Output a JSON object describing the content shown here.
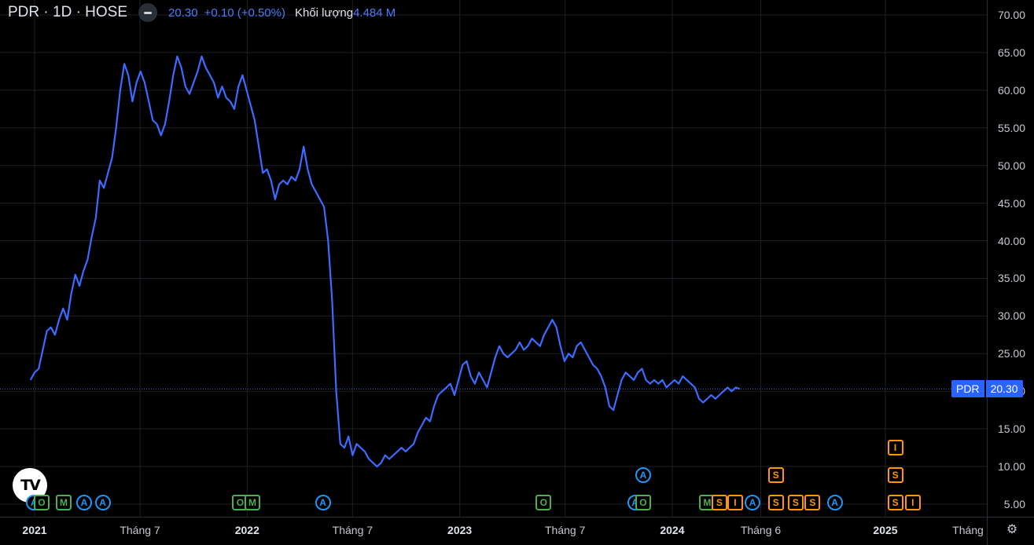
{
  "header": {
    "symbol": "PDR · 1D · HOSE",
    "price": "20.30",
    "change": "+0.10 (+0.50%)",
    "volume_label": "Khối lượng",
    "volume_value": "4.484 M"
  },
  "logo_text": "TV",
  "price_tag": {
    "symbol": "PDR",
    "value": "20.30"
  },
  "x_axis_labels": [
    {
      "text": "2021",
      "year": true,
      "date": "2021-01-01"
    },
    {
      "text": "Tháng 7",
      "year": false,
      "date": "2021-07-01"
    },
    {
      "text": "2022",
      "year": true,
      "date": "2022-01-01"
    },
    {
      "text": "Tháng 7",
      "year": false,
      "date": "2022-07-01"
    },
    {
      "text": "2023",
      "year": true,
      "date": "2023-01-01"
    },
    {
      "text": "Tháng 7",
      "year": false,
      "date": "2023-07-01"
    },
    {
      "text": "2024",
      "year": true,
      "date": "2024-01-01"
    },
    {
      "text": "Tháng 6",
      "year": false,
      "date": "2024-06-01"
    },
    {
      "text": "2025",
      "year": true,
      "date": "2025-01-01"
    }
  ],
  "x_axis_unit_label": "Tháng",
  "events": [
    {
      "type": "A",
      "date": "2020-12-31",
      "row": 0
    },
    {
      "type": "O",
      "date": "2021-01-13",
      "row": 0
    },
    {
      "type": "M",
      "date": "2021-02-20",
      "row": 0
    },
    {
      "type": "A",
      "date": "2021-03-27",
      "row": 0
    },
    {
      "type": "A",
      "date": "2021-04-28",
      "row": 0
    },
    {
      "type": "O",
      "date": "2021-12-20",
      "row": 0
    },
    {
      "type": "M",
      "date": "2022-01-10",
      "row": 0
    },
    {
      "type": "A",
      "date": "2022-05-11",
      "row": 0
    },
    {
      "type": "O",
      "date": "2023-05-25",
      "row": 0
    },
    {
      "type": "A",
      "date": "2023-10-29",
      "row": 0
    },
    {
      "type": "O",
      "date": "2023-11-12",
      "row": 0
    },
    {
      "type": "A",
      "date": "2023-11-12",
      "row": 1
    },
    {
      "type": "M",
      "date": "2024-03-01",
      "row": 0
    },
    {
      "type": "S",
      "date": "2024-03-22",
      "row": 0
    },
    {
      "type": "I",
      "date": "2024-04-18",
      "row": 0
    },
    {
      "type": "A",
      "date": "2024-05-18",
      "row": 0
    },
    {
      "type": "S",
      "date": "2024-06-27",
      "row": 0
    },
    {
      "type": "S",
      "date": "2024-06-27",
      "row": 1
    },
    {
      "type": "S",
      "date": "2024-07-31",
      "row": 0
    },
    {
      "type": "S",
      "date": "2024-08-29",
      "row": 0
    },
    {
      "type": "A",
      "date": "2024-10-06",
      "row": 0
    },
    {
      "type": "S",
      "date": "2025-01-18",
      "row": 0
    },
    {
      "type": "S",
      "date": "2025-01-18",
      "row": 1
    },
    {
      "type": "I",
      "date": "2025-01-18",
      "row": 2
    },
    {
      "type": "I",
      "date": "2025-02-17",
      "row": 0
    }
  ],
  "chart_data": {
    "type": "line",
    "series": [
      {
        "name": "PDR",
        "color": "#3d6bff",
        "points": [
          [
            "2020-12-25",
            21.5
          ],
          [
            "2021-01-01",
            22.5
          ],
          [
            "2021-01-08",
            23.0
          ],
          [
            "2021-01-15",
            25.5
          ],
          [
            "2021-01-22",
            28.0
          ],
          [
            "2021-01-29",
            28.5
          ],
          [
            "2021-02-05",
            27.5
          ],
          [
            "2021-02-12",
            29.5
          ],
          [
            "2021-02-19",
            31.0
          ],
          [
            "2021-02-26",
            29.5
          ],
          [
            "2021-03-05",
            33.0
          ],
          [
            "2021-03-12",
            35.5
          ],
          [
            "2021-03-19",
            34.0
          ],
          [
            "2021-03-26",
            36.0
          ],
          [
            "2021-04-02",
            37.5
          ],
          [
            "2021-04-09",
            40.5
          ],
          [
            "2021-04-16",
            43.0
          ],
          [
            "2021-04-23",
            48.0
          ],
          [
            "2021-04-30",
            47.0
          ],
          [
            "2021-05-07",
            49.0
          ],
          [
            "2021-05-14",
            51.0
          ],
          [
            "2021-05-21",
            55.0
          ],
          [
            "2021-05-28",
            60.0
          ],
          [
            "2021-06-04",
            63.5
          ],
          [
            "2021-06-11",
            62.0
          ],
          [
            "2021-06-18",
            58.5
          ],
          [
            "2021-06-25",
            61.0
          ],
          [
            "2021-07-02",
            62.5
          ],
          [
            "2021-07-09",
            61.0
          ],
          [
            "2021-07-16",
            58.5
          ],
          [
            "2021-07-23",
            56.0
          ],
          [
            "2021-07-30",
            55.5
          ],
          [
            "2021-08-06",
            54.0
          ],
          [
            "2021-08-13",
            55.5
          ],
          [
            "2021-08-20",
            58.5
          ],
          [
            "2021-08-27",
            62.0
          ],
          [
            "2021-09-03",
            64.5
          ],
          [
            "2021-09-10",
            63.0
          ],
          [
            "2021-09-17",
            60.5
          ],
          [
            "2021-09-24",
            59.5
          ],
          [
            "2021-10-01",
            61.0
          ],
          [
            "2021-10-08",
            62.5
          ],
          [
            "2021-10-15",
            64.5
          ],
          [
            "2021-10-22",
            63.0
          ],
          [
            "2021-10-29",
            62.0
          ],
          [
            "2021-11-05",
            61.0
          ],
          [
            "2021-11-12",
            59.0
          ],
          [
            "2021-11-19",
            60.5
          ],
          [
            "2021-11-26",
            59.0
          ],
          [
            "2021-12-03",
            58.5
          ],
          [
            "2021-12-10",
            57.5
          ],
          [
            "2021-12-17",
            60.5
          ],
          [
            "2021-12-24",
            62.0
          ],
          [
            "2021-12-31",
            60.0
          ],
          [
            "2022-01-07",
            58.0
          ],
          [
            "2022-01-14",
            56.0
          ],
          [
            "2022-01-21",
            52.5
          ],
          [
            "2022-01-28",
            49.0
          ],
          [
            "2022-02-04",
            49.5
          ],
          [
            "2022-02-11",
            48.0
          ],
          [
            "2022-02-18",
            45.5
          ],
          [
            "2022-02-25",
            47.5
          ],
          [
            "2022-03-04",
            48.0
          ],
          [
            "2022-03-11",
            47.5
          ],
          [
            "2022-03-18",
            48.5
          ],
          [
            "2022-03-25",
            48.0
          ],
          [
            "2022-04-01",
            49.5
          ],
          [
            "2022-04-08",
            52.5
          ],
          [
            "2022-04-15",
            49.5
          ],
          [
            "2022-04-22",
            47.5
          ],
          [
            "2022-04-29",
            46.5
          ],
          [
            "2022-05-06",
            45.5
          ],
          [
            "2022-05-13",
            44.5
          ],
          [
            "2022-05-20",
            40.0
          ],
          [
            "2022-05-27",
            32.0
          ],
          [
            "2022-06-03",
            20.0
          ],
          [
            "2022-06-10",
            13.0
          ],
          [
            "2022-06-17",
            12.5
          ],
          [
            "2022-06-24",
            14.0
          ],
          [
            "2022-07-01",
            11.5
          ],
          [
            "2022-07-08",
            13.0
          ],
          [
            "2022-07-15",
            12.5
          ],
          [
            "2022-07-22",
            12.0
          ],
          [
            "2022-07-29",
            11.0
          ],
          [
            "2022-08-05",
            10.5
          ],
          [
            "2022-08-12",
            10.0
          ],
          [
            "2022-08-19",
            10.5
          ],
          [
            "2022-08-26",
            11.5
          ],
          [
            "2022-09-02",
            11.0
          ],
          [
            "2022-09-09",
            11.5
          ],
          [
            "2022-09-16",
            12.0
          ],
          [
            "2022-09-23",
            12.5
          ],
          [
            "2022-09-30",
            12.0
          ],
          [
            "2022-10-07",
            12.5
          ],
          [
            "2022-10-14",
            13.0
          ],
          [
            "2022-10-21",
            14.5
          ],
          [
            "2022-10-28",
            15.5
          ],
          [
            "2022-11-04",
            16.5
          ],
          [
            "2022-11-11",
            16.0
          ],
          [
            "2022-11-18",
            18.0
          ],
          [
            "2022-11-25",
            19.5
          ],
          [
            "2022-12-02",
            20.0
          ],
          [
            "2022-12-09",
            20.5
          ],
          [
            "2022-12-16",
            21.0
          ],
          [
            "2022-12-23",
            19.5
          ],
          [
            "2022-12-30",
            21.5
          ],
          [
            "2023-01-06",
            23.5
          ],
          [
            "2023-01-13",
            24.0
          ],
          [
            "2023-01-20",
            22.0
          ],
          [
            "2023-01-27",
            21.0
          ],
          [
            "2023-02-03",
            22.5
          ],
          [
            "2023-02-10",
            21.5
          ],
          [
            "2023-02-17",
            20.5
          ],
          [
            "2023-02-24",
            22.5
          ],
          [
            "2023-03-03",
            24.5
          ],
          [
            "2023-03-10",
            26.0
          ],
          [
            "2023-03-17",
            25.0
          ],
          [
            "2023-03-24",
            24.5
          ],
          [
            "2023-03-31",
            25.0
          ],
          [
            "2023-04-07",
            25.5
          ],
          [
            "2023-04-14",
            26.5
          ],
          [
            "2023-04-21",
            25.5
          ],
          [
            "2023-04-28",
            26.0
          ],
          [
            "2023-05-05",
            27.0
          ],
          [
            "2023-05-12",
            26.5
          ],
          [
            "2023-05-19",
            26.0
          ],
          [
            "2023-05-26",
            27.5
          ],
          [
            "2023-06-02",
            28.5
          ],
          [
            "2023-06-09",
            29.5
          ],
          [
            "2023-06-16",
            28.5
          ],
          [
            "2023-06-23",
            26.0
          ],
          [
            "2023-06-30",
            24.0
          ],
          [
            "2023-07-07",
            25.0
          ],
          [
            "2023-07-14",
            24.5
          ],
          [
            "2023-07-21",
            26.0
          ],
          [
            "2023-07-28",
            26.5
          ],
          [
            "2023-08-04",
            25.5
          ],
          [
            "2023-08-11",
            24.5
          ],
          [
            "2023-08-18",
            23.5
          ],
          [
            "2023-08-25",
            23.0
          ],
          [
            "2023-09-01",
            22.0
          ],
          [
            "2023-09-08",
            20.5
          ],
          [
            "2023-09-15",
            18.0
          ],
          [
            "2023-09-22",
            17.5
          ],
          [
            "2023-09-29",
            19.5
          ],
          [
            "2023-10-06",
            21.5
          ],
          [
            "2023-10-13",
            22.5
          ],
          [
            "2023-10-20",
            22.0
          ],
          [
            "2023-10-27",
            21.5
          ],
          [
            "2023-11-03",
            22.5
          ],
          [
            "2023-11-10",
            23.0
          ],
          [
            "2023-11-17",
            21.5
          ],
          [
            "2023-11-24",
            21.0
          ],
          [
            "2023-12-01",
            21.5
          ],
          [
            "2023-12-08",
            21.0
          ],
          [
            "2023-12-15",
            21.5
          ],
          [
            "2023-12-22",
            20.5
          ],
          [
            "2023-12-29",
            21.0
          ],
          [
            "2024-01-05",
            21.5
          ],
          [
            "2024-01-12",
            21.0
          ],
          [
            "2024-01-19",
            22.0
          ],
          [
            "2024-01-26",
            21.5
          ],
          [
            "2024-02-02",
            21.0
          ],
          [
            "2024-02-09",
            20.5
          ],
          [
            "2024-02-16",
            19.0
          ],
          [
            "2024-02-23",
            18.5
          ],
          [
            "2024-03-01",
            19.0
          ],
          [
            "2024-03-08",
            19.5
          ],
          [
            "2024-03-15",
            19.0
          ],
          [
            "2024-03-22",
            19.5
          ],
          [
            "2024-03-29",
            20.0
          ],
          [
            "2024-04-05",
            20.5
          ],
          [
            "2024-04-12",
            20.0
          ],
          [
            "2024-04-19",
            20.5
          ],
          [
            "2024-04-26",
            20.3
          ]
        ]
      }
    ],
    "date_axis_note": "dates along x correspond to the plotted trading timeline",
    "ylim": [
      3.0,
      71.0
    ],
    "y_ticks": [
      "70.00",
      "65.00",
      "60.00",
      "55.00",
      "50.00",
      "45.00",
      "40.00",
      "35.00",
      "30.00",
      "25.00",
      "20.00",
      "15.00",
      "10.00",
      "5.00"
    ],
    "last_price_line": 20.3,
    "grid": true
  }
}
